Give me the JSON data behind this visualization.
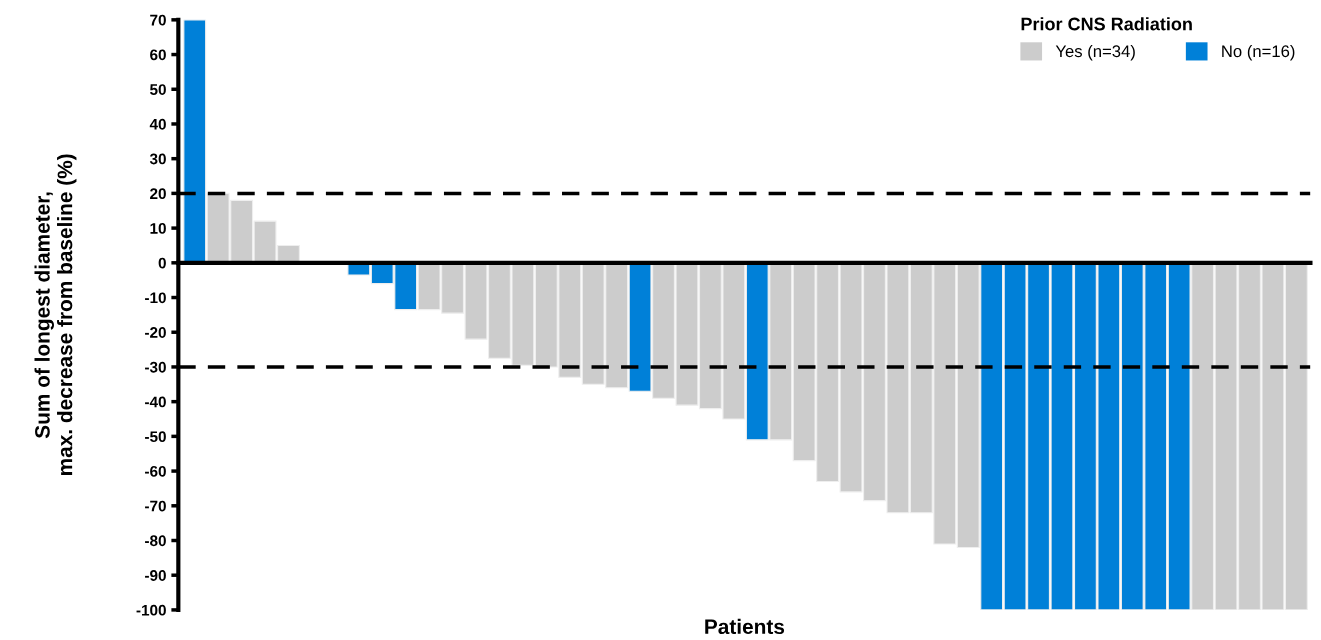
{
  "chart_data": {
    "type": "bar",
    "xlabel": "Patients",
    "ylabel": "Sum of longest diameter,\nmax. decrease from baseline (%)",
    "legend_title": "Prior CNS Radiation",
    "categories": [
      null,
      null,
      null,
      null,
      null,
      null,
      null,
      null,
      null,
      null,
      null,
      null,
      null,
      null,
      null,
      null,
      null,
      null,
      null,
      null,
      null,
      null,
      null,
      null,
      null,
      null,
      null,
      null,
      null,
      null,
      null,
      null,
      null,
      null,
      null,
      null,
      null,
      null,
      null,
      null,
      null,
      null,
      null,
      null,
      null,
      null,
      null,
      null
    ],
    "series": [
      {
        "name": "Yes (n=34)",
        "color": "#cccccc",
        "values": [
          null,
          20,
          18,
          12,
          5,
          null,
          null,
          null,
          null,
          null,
          -13.5,
          -14.5,
          -22,
          -27.5,
          -29.5,
          -30,
          -33,
          -35,
          -36,
          null,
          -39,
          -41,
          -42,
          -45,
          null,
          -51,
          -57,
          -63,
          -66,
          -68.5,
          -72,
          -72,
          -81,
          -82,
          null,
          null,
          null,
          null,
          null,
          null,
          null,
          null,
          null,
          -100,
          -100,
          -100,
          -100,
          -100
        ]
      },
      {
        "name": "No (n=16)",
        "color": "#0080d8",
        "values": [
          70,
          null,
          null,
          null,
          null,
          null,
          null,
          -3.5,
          -6,
          -13.5,
          null,
          null,
          null,
          null,
          null,
          null,
          null,
          null,
          null,
          -37,
          null,
          null,
          null,
          null,
          -51,
          null,
          null,
          null,
          null,
          null,
          null,
          null,
          null,
          null,
          -100,
          -100,
          -100,
          -100,
          -100,
          -100,
          -100,
          -100,
          -100,
          null,
          null,
          null,
          null,
          null
        ]
      }
    ],
    "ylim": [
      -100,
      70
    ],
    "yticks": [
      -100,
      -90,
      -80,
      -70,
      -60,
      -50,
      -40,
      -30,
      -20,
      -10,
      0,
      10,
      20,
      30,
      40,
      50,
      60,
      70
    ],
    "ref_lines": [
      {
        "axis": "y",
        "value": 20,
        "color": "#000000",
        "line_style": "dashed"
      },
      {
        "axis": "y",
        "value": -30,
        "color": "#000000",
        "line_style": "dashed"
      }
    ],
    "grid": false,
    "legend": "top right"
  }
}
